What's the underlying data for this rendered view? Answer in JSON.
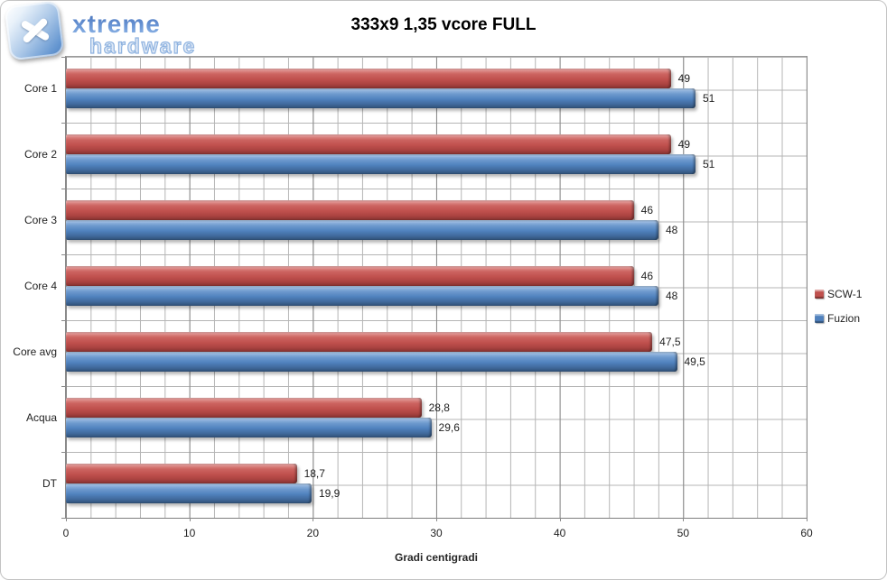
{
  "logo": {
    "brand_top": "xtreme",
    "brand_bottom": "hardware",
    "icon": "x-tile-icon",
    "brand_color": "#5b86cc"
  },
  "chart_data": {
    "type": "bar",
    "orientation": "horizontal",
    "title": "333x9 1,35 vcore FULL",
    "categories": [
      "Core 1",
      "Core 2",
      "Core 3",
      "Core 4",
      "Core avg",
      "Acqua",
      "DT"
    ],
    "series": [
      {
        "name": "SCW-1",
        "color": "#c0504d",
        "values": [
          49,
          49,
          46,
          46,
          47.5,
          28.8,
          18.7
        ],
        "labels": [
          "49",
          "49",
          "46",
          "46",
          "47,5",
          "28,8",
          "18,7"
        ]
      },
      {
        "name": "Fuzion",
        "color": "#4f81bd",
        "values": [
          51,
          51,
          48,
          48,
          49.5,
          29.6,
          19.9
        ],
        "labels": [
          "51",
          "51",
          "48",
          "48",
          "49,5",
          "29,6",
          "19,9"
        ]
      }
    ],
    "xlabel": "Gradi centigradi",
    "xlim": [
      0,
      60
    ],
    "x_ticks": [
      "0",
      "10",
      "20",
      "30",
      "40",
      "50",
      "60"
    ],
    "x_major_unit": 10,
    "x_minor_unit": 2,
    "grid": true,
    "legend_position": "right",
    "colors": {
      "grid_minor": "#b5b5b5",
      "grid_major": "#8a8a8a",
      "axis_line": "#7e7e7e",
      "label_text": "#1f1f1f"
    }
  }
}
